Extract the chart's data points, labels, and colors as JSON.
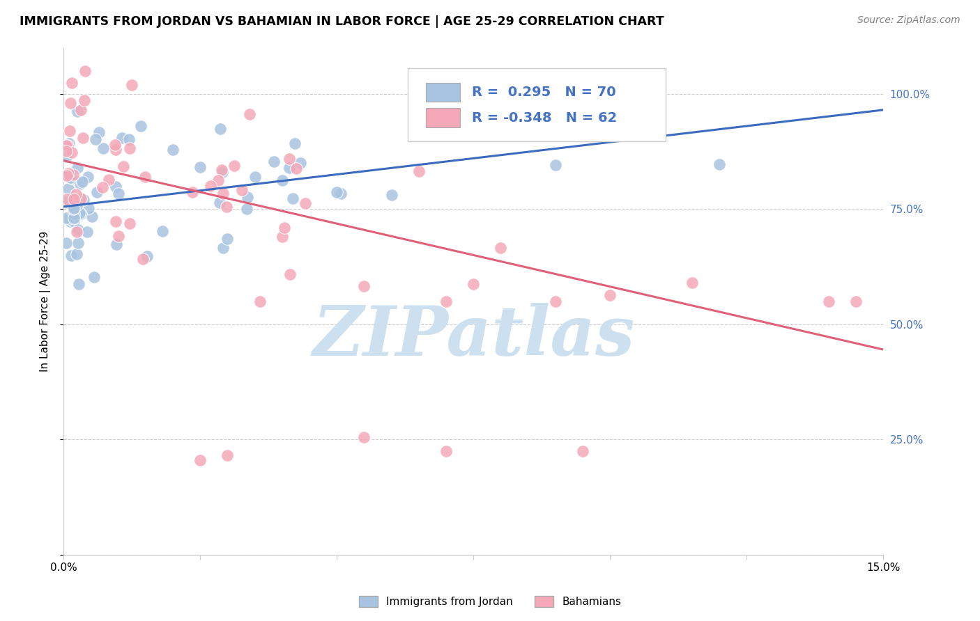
{
  "title": "IMMIGRANTS FROM JORDAN VS BAHAMIAN IN LABOR FORCE | AGE 25-29 CORRELATION CHART",
  "source": "Source: ZipAtlas.com",
  "ylabel": "In Labor Force | Age 25-29",
  "xmin": 0.0,
  "xmax": 0.15,
  "ymin": 0.0,
  "ymax": 1.1,
  "yticks": [
    0.0,
    0.25,
    0.5,
    0.75,
    1.0
  ],
  "ytick_labels": [
    "",
    "25.0%",
    "50.0%",
    "75.0%",
    "100.0%"
  ],
  "jordan_R": 0.295,
  "jordan_N": 70,
  "bahamas_R": -0.348,
  "bahamas_N": 62,
  "jordan_color": "#a8c4e0",
  "bahamas_color": "#f4a8b8",
  "jordan_line_color": "#3a6bbf",
  "bahamas_line_color": "#e0607a",
  "background_color": "#ffffff",
  "grid_color": "#cccccc",
  "tick_color_right": "#4472c4",
  "watermark_text": "ZIPatlas",
  "watermark_color": "#cce0f0",
  "jordan_trend_x0": 0.0,
  "jordan_trend_y0": 0.755,
  "jordan_trend_x1": 0.15,
  "jordan_trend_y1": 0.965,
  "bahamas_trend_x0": 0.0,
  "bahamas_trend_y0": 0.855,
  "bahamas_trend_x1": 0.15,
  "bahamas_trend_y1": 0.445
}
